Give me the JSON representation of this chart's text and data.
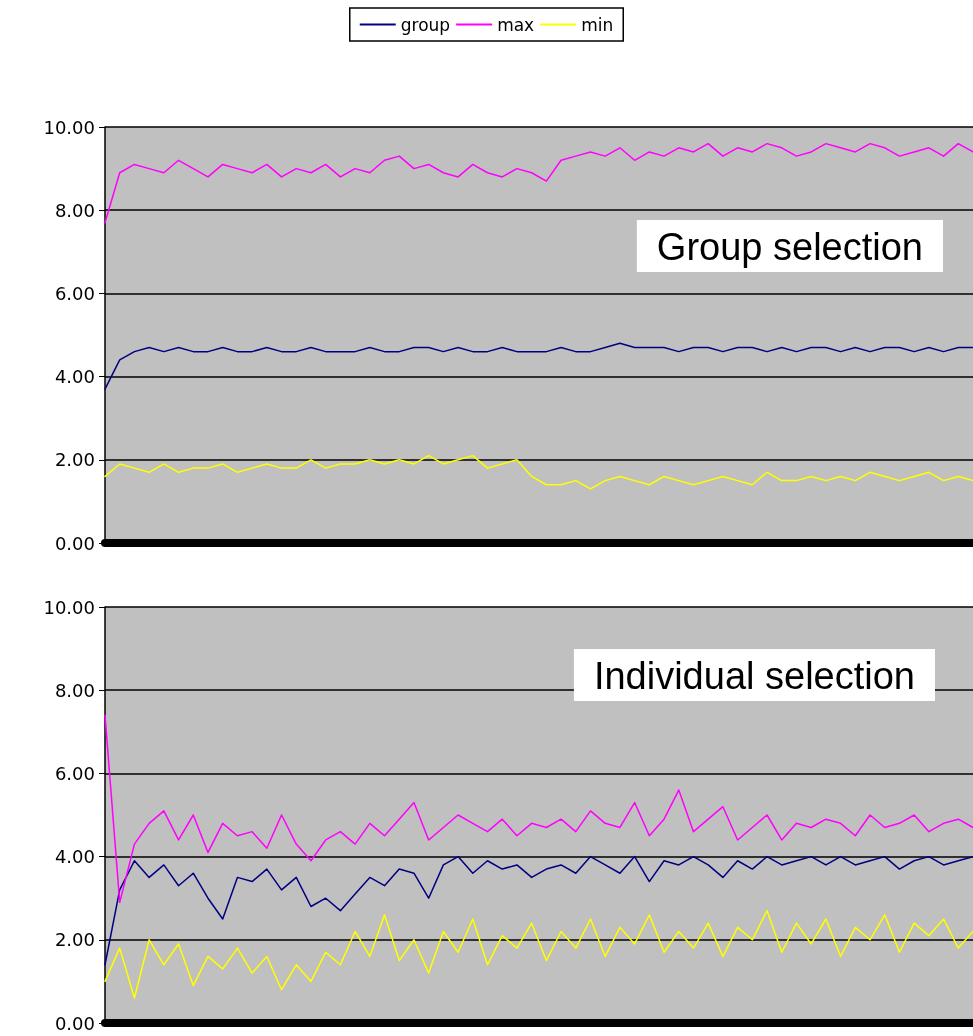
{
  "chart_data": [
    {
      "type": "line",
      "categories": [
        null,
        null,
        null,
        null,
        null,
        null,
        null,
        null,
        null,
        null,
        null,
        null,
        null,
        null,
        null,
        null,
        null,
        null,
        null,
        null,
        null,
        null,
        null,
        null,
        null,
        null,
        null,
        null,
        null,
        null,
        null,
        null,
        null,
        null,
        null,
        null,
        null,
        null,
        null,
        null,
        null,
        null,
        null,
        null,
        null,
        null,
        null,
        null,
        null,
        null,
        null,
        null,
        null,
        null,
        null,
        null,
        null,
        null,
        null,
        null
      ],
      "series": [
        {
          "name": "group",
          "color": "#000080",
          "values": [
            3.7,
            4.4,
            4.6,
            4.7,
            4.6,
            4.7,
            4.6,
            4.6,
            4.7,
            4.6,
            4.6,
            4.7,
            4.6,
            4.6,
            4.7,
            4.6,
            4.6,
            4.6,
            4.7,
            4.6,
            4.6,
            4.7,
            4.7,
            4.6,
            4.7,
            4.6,
            4.6,
            4.7,
            4.6,
            4.6,
            4.6,
            4.7,
            4.6,
            4.6,
            4.7,
            4.8,
            4.7,
            4.7,
            4.7,
            4.6,
            4.7,
            4.7,
            4.6,
            4.7,
            4.7,
            4.6,
            4.7,
            4.6,
            4.7,
            4.7,
            4.6,
            4.7,
            4.6,
            4.7,
            4.7,
            4.6,
            4.7,
            4.6,
            4.7,
            4.7
          ]
        },
        {
          "name": "max",
          "color": "#ff00ff",
          "values": [
            7.7,
            8.9,
            9.1,
            9.0,
            8.9,
            9.2,
            9.0,
            8.8,
            9.1,
            9.0,
            8.9,
            9.1,
            8.8,
            9.0,
            8.9,
            9.1,
            8.8,
            9.0,
            8.9,
            9.2,
            9.3,
            9.0,
            9.1,
            8.9,
            8.8,
            9.1,
            8.9,
            8.8,
            9.0,
            8.9,
            8.7,
            9.2,
            9.3,
            9.4,
            9.3,
            9.5,
            9.2,
            9.4,
            9.3,
            9.5,
            9.4,
            9.6,
            9.3,
            9.5,
            9.4,
            9.6,
            9.5,
            9.3,
            9.4,
            9.6,
            9.5,
            9.4,
            9.6,
            9.5,
            9.3,
            9.4,
            9.5,
            9.3,
            9.6,
            9.4
          ]
        },
        {
          "name": "min",
          "color": "#ffff00",
          "values": [
            1.6,
            1.9,
            1.8,
            1.7,
            1.9,
            1.7,
            1.8,
            1.8,
            1.9,
            1.7,
            1.8,
            1.9,
            1.8,
            1.8,
            2.0,
            1.8,
            1.9,
            1.9,
            2.0,
            1.9,
            2.0,
            1.9,
            2.1,
            1.9,
            2.0,
            2.1,
            1.8,
            1.9,
            2.0,
            1.6,
            1.4,
            1.4,
            1.5,
            1.3,
            1.5,
            1.6,
            1.5,
            1.4,
            1.6,
            1.5,
            1.4,
            1.5,
            1.6,
            1.5,
            1.4,
            1.7,
            1.5,
            1.5,
            1.6,
            1.5,
            1.6,
            1.5,
            1.7,
            1.6,
            1.5,
            1.6,
            1.7,
            1.5,
            1.6,
            1.5
          ]
        }
      ],
      "ylim": [
        0,
        10
      ],
      "yticks": [
        {
          "value": 0,
          "label": "0.00"
        },
        {
          "value": 2,
          "label": "2.00"
        },
        {
          "value": 4,
          "label": "4.00"
        },
        {
          "value": 6,
          "label": "6.00"
        },
        {
          "value": 8,
          "label": "8.00"
        },
        {
          "value": 10,
          "label": "10.00"
        }
      ],
      "grid": "y",
      "legend": "top",
      "marker": "none",
      "line_style": "solid",
      "tick_labels": "y",
      "annotations": [
        "Group selection"
      ]
    },
    {
      "type": "line",
      "categories": [
        null,
        null,
        null,
        null,
        null,
        null,
        null,
        null,
        null,
        null,
        null,
        null,
        null,
        null,
        null,
        null,
        null,
        null,
        null,
        null,
        null,
        null,
        null,
        null,
        null,
        null,
        null,
        null,
        null,
        null,
        null,
        null,
        null,
        null,
        null,
        null,
        null,
        null,
        null,
        null,
        null,
        null,
        null,
        null,
        null,
        null,
        null,
        null,
        null,
        null,
        null,
        null,
        null,
        null,
        null,
        null,
        null,
        null,
        null,
        null
      ],
      "series": [
        {
          "color": "#000080",
          "values": [
            1.4,
            3.2,
            3.9,
            3.5,
            3.8,
            3.3,
            3.6,
            3.0,
            2.5,
            3.5,
            3.4,
            3.7,
            3.2,
            3.5,
            2.8,
            3.0,
            2.7,
            3.1,
            3.5,
            3.3,
            3.7,
            3.6,
            3.0,
            3.8,
            4.0,
            3.6,
            3.9,
            3.7,
            3.8,
            3.5,
            3.7,
            3.8,
            3.6,
            4.0,
            3.8,
            3.6,
            4.0,
            3.4,
            3.9,
            3.8,
            4.0,
            3.8,
            3.5,
            3.9,
            3.7,
            4.0,
            3.8,
            3.9,
            4.0,
            3.8,
            4.0,
            3.8,
            3.9,
            4.0,
            3.7,
            3.9,
            4.0,
            3.8,
            3.9,
            4.0
          ]
        },
        {
          "color": "#ff00ff",
          "values": [
            7.4,
            2.9,
            4.3,
            4.8,
            5.1,
            4.4,
            5.0,
            4.1,
            4.8,
            4.5,
            4.6,
            4.2,
            5.0,
            4.3,
            3.9,
            4.4,
            4.6,
            4.3,
            4.8,
            4.5,
            4.9,
            5.3,
            4.4,
            4.7,
            5.0,
            4.8,
            4.6,
            4.9,
            4.5,
            4.8,
            4.7,
            4.9,
            4.6,
            5.1,
            4.8,
            4.7,
            5.3,
            4.5,
            4.9,
            5.6,
            4.6,
            4.9,
            5.2,
            4.4,
            4.7,
            5.0,
            4.4,
            4.8,
            4.7,
            4.9,
            4.8,
            4.5,
            5.0,
            4.7,
            4.8,
            5.0,
            4.6,
            4.8,
            4.9,
            4.7
          ]
        },
        {
          "color": "#ffff00",
          "values": [
            1.0,
            1.8,
            0.6,
            2.0,
            1.4,
            1.9,
            0.9,
            1.6,
            1.3,
            1.8,
            1.2,
            1.6,
            0.8,
            1.4,
            1.0,
            1.7,
            1.4,
            2.2,
            1.6,
            2.6,
            1.5,
            2.0,
            1.2,
            2.2,
            1.7,
            2.5,
            1.4,
            2.1,
            1.8,
            2.4,
            1.5,
            2.2,
            1.8,
            2.5,
            1.6,
            2.3,
            1.9,
            2.6,
            1.7,
            2.2,
            1.8,
            2.4,
            1.6,
            2.3,
            2.0,
            2.7,
            1.7,
            2.4,
            1.9,
            2.5,
            1.6,
            2.3,
            2.0,
            2.6,
            1.7,
            2.4,
            2.1,
            2.5,
            1.8,
            2.2
          ]
        }
      ],
      "ylim": [
        0,
        10
      ],
      "yticks": [
        {
          "value": 0,
          "label": "0.00"
        },
        {
          "value": 2,
          "label": "2.00"
        },
        {
          "value": 4,
          "label": "4.00"
        },
        {
          "value": 6,
          "label": "6.00"
        },
        {
          "value": 8,
          "label": "8.00"
        },
        {
          "value": 10,
          "label": "10.00"
        }
      ],
      "grid": "y",
      "marker": "none",
      "line_style": "solid",
      "tick_labels": "y",
      "annotations": [
        "Individual selection"
      ]
    }
  ]
}
